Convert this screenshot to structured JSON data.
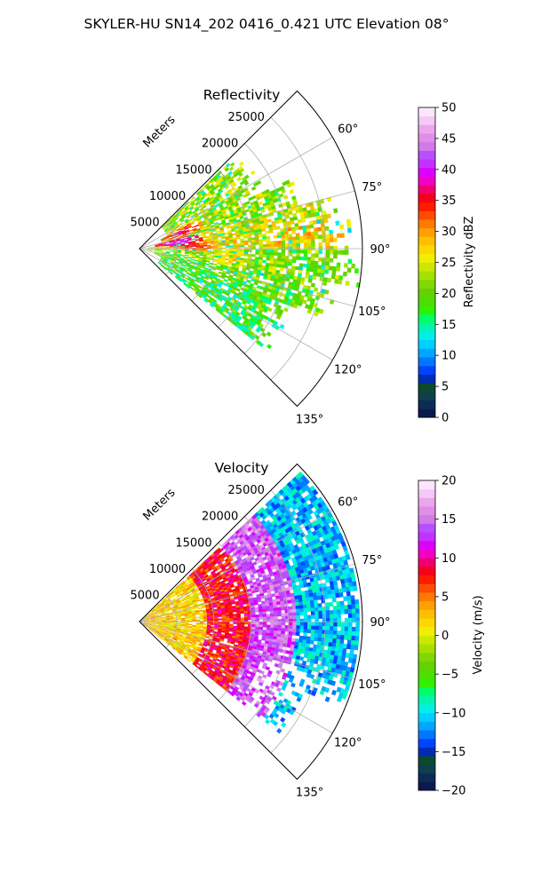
{
  "figure_title": "SKYLER-HU  SN14_202  0416_0.421 UTC Elevation 08°",
  "chart_data": [
    {
      "type": "polar-sector-heatmap",
      "title": "Reflectivity",
      "range_label": "Meters",
      "range_ticks": [
        5000,
        10000,
        15000,
        20000,
        25000
      ],
      "r_max": 30000,
      "angle_range_deg": [
        45,
        135
      ],
      "angle_ticks": [
        "60°",
        "75°",
        "90°",
        "105°",
        "120°",
        "135°"
      ],
      "grid": true,
      "colorbar": {
        "label": "Reflectivity dBZ",
        "range": [
          0,
          50
        ],
        "ticks": [
          "0",
          "5",
          "10",
          "15",
          "20",
          "25",
          "30",
          "35",
          "40",
          "45",
          "50"
        ],
        "colors": [
          "#0a1a4e",
          "#0c2c55",
          "#0f3f4a",
          "#0c4a2e",
          "#002bb3",
          "#0044ff",
          "#0077ff",
          "#00a6ff",
          "#00cfff",
          "#00f0e8",
          "#00f5b0",
          "#00ff66",
          "#33f000",
          "#4fdc00",
          "#66d100",
          "#80d800",
          "#a6e000",
          "#cce800",
          "#f2ee00",
          "#ffd700",
          "#ffbf00",
          "#ffa000",
          "#ff7a00",
          "#ff4d00",
          "#ff1a00",
          "#f8001a",
          "#f0006e",
          "#f200c6",
          "#dd00ff",
          "#c233ff",
          "#b850ff",
          "#d27ae8",
          "#e08ee8",
          "#eba6ef",
          "#f5c9f5",
          "#fde6fd"
        ]
      },
      "rain_bands": [
        {
          "angle": 60,
          "r_start": 4000,
          "r_end": 17500,
          "value": 22
        },
        {
          "angle": 70,
          "r_start": 3000,
          "r_end": 22000,
          "value": 22
        },
        {
          "angle": 78,
          "r_start": 2000,
          "r_end": 26000,
          "value": 24
        },
        {
          "angle": 85,
          "r_start": 1000,
          "r_end": 28500,
          "value": 26
        },
        {
          "angle": 95,
          "r_start": 1000,
          "r_end": 29000,
          "value": 21
        },
        {
          "angle": 105,
          "r_start": 2000,
          "r_end": 26000,
          "value": 20
        },
        {
          "angle": 115,
          "r_start": 3000,
          "r_end": 21000,
          "value": 18
        }
      ],
      "cores": [
        {
          "angle": 68,
          "r": 5500,
          "value": 38
        },
        {
          "angle": 80,
          "r": 5000,
          "value": 42
        },
        {
          "angle": 87,
          "r": 7000,
          "value": 36
        },
        {
          "angle": 95,
          "r": 12000,
          "value": 30
        }
      ]
    },
    {
      "type": "polar-sector-heatmap",
      "title": "Velocity",
      "range_label": "Meters",
      "range_ticks": [
        5000,
        10000,
        15000,
        20000,
        25000
      ],
      "r_max": 30000,
      "angle_range_deg": [
        45,
        135
      ],
      "angle_ticks": [
        "60°",
        "75°",
        "90°",
        "105°",
        "120°",
        "135°"
      ],
      "grid": true,
      "colorbar": {
        "label": "Velocity (m/s)",
        "range": [
          -20,
          20
        ],
        "ticks": [
          "−20",
          "−15",
          "−10",
          "−5",
          "0",
          "5",
          "10",
          "15",
          "20"
        ],
        "colors": [
          "#0a1a4e",
          "#0c2c55",
          "#0f3f4a",
          "#0c4a2e",
          "#002bb3",
          "#0044ff",
          "#0077ff",
          "#00a6ff",
          "#00cfff",
          "#00f0e8",
          "#00f5b0",
          "#00ff66",
          "#33f000",
          "#4fdc00",
          "#66d100",
          "#80d800",
          "#a6e000",
          "#cce800",
          "#f2ee00",
          "#ffd700",
          "#ffbf00",
          "#ffa000",
          "#ff7a00",
          "#ff4d00",
          "#ff1a00",
          "#f8001a",
          "#f0006e",
          "#f200c6",
          "#dd00ff",
          "#c233ff",
          "#b850ff",
          "#d27ae8",
          "#e08ee8",
          "#eba6ef",
          "#f5c9f5",
          "#fde6fd"
        ]
      },
      "range_zones": [
        {
          "r_start": 0,
          "r_end": 9000,
          "value": 2
        },
        {
          "r_start": 9000,
          "r_end": 15000,
          "value": 8
        },
        {
          "r_start": 15000,
          "r_end": 21000,
          "value": 14
        },
        {
          "r_start": 21000,
          "r_end": 30000,
          "value": -11
        }
      ],
      "coverage_deg": [
        47,
        128
      ]
    }
  ]
}
